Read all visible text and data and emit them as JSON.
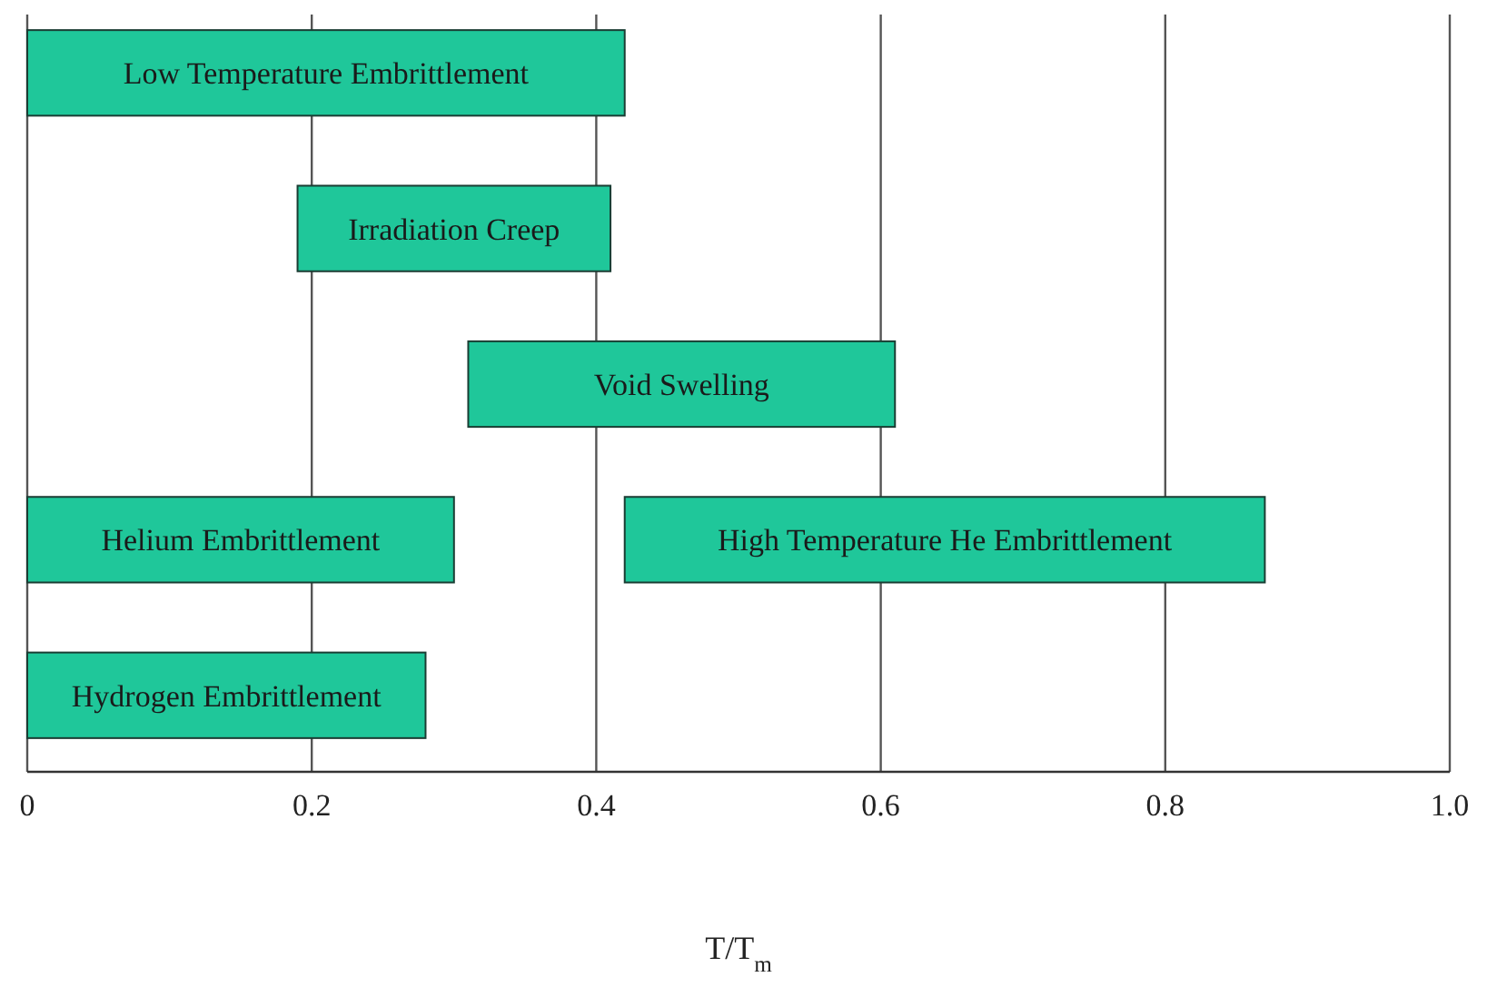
{
  "chart_data": {
    "type": "bar",
    "orientation": "horizontal",
    "xlabel": "T/T$_{m}$",
    "categories": [
      null,
      null,
      null,
      null,
      null
    ],
    "series": [
      {
        "color": "#1fc79a",
        "base": [
          0,
          0.19,
          0.31,
          0,
          0
        ],
        "values": [
          0.42,
          0.22,
          0.3,
          0.3,
          0.28
        ],
        "value_labels": [
          "Low Temperature Embrittlement",
          "Irradiation Creep",
          "Void Swelling",
          "Helium Embrittlement",
          "Hydrogen Embrittlement"
        ]
      },
      {
        "color": "#1fc79a",
        "base": [
          null,
          null,
          null,
          0.42,
          null
        ],
        "values": [
          null,
          null,
          null,
          0.45,
          null
        ],
        "value_labels": [
          null,
          null,
          null,
          "High Temperature He Embrittlement",
          null
        ]
      }
    ],
    "xlim": [
      0,
      1
    ],
    "xticks": [
      0,
      0.2,
      0.4,
      0.6,
      0.8,
      {
        "value": 1,
        "label": "1.0"
      }
    ],
    "grid": "x"
  }
}
